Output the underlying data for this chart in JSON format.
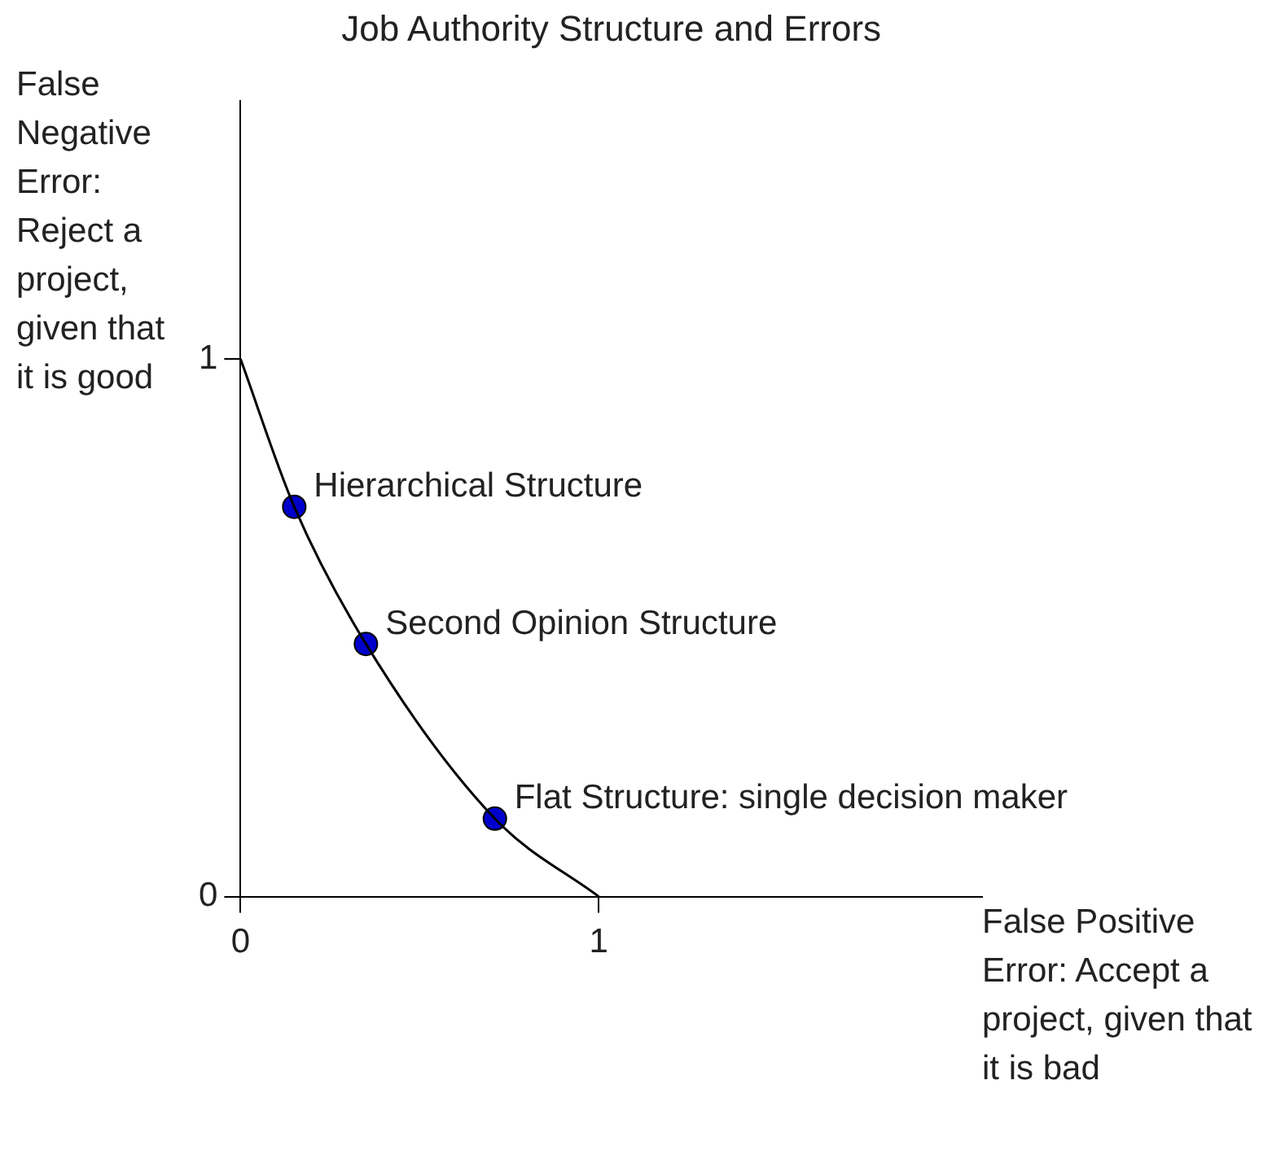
{
  "chart_data": {
    "type": "line",
    "title": "Job Authority Structure and Errors",
    "xlabel": "False Positive Error: Accept a project, given that it is bad",
    "ylabel": "False Negative Error: Reject a project, given that it is good",
    "xlim": [
      0,
      2.07
    ],
    "ylim": [
      0,
      1.48
    ],
    "xticks": [
      0,
      1
    ],
    "yticks": [
      0,
      1
    ],
    "grid": false,
    "legend": false,
    "series": [
      {
        "color": "#000000",
        "marker": "none",
        "x": [
          0,
          0.15,
          0.35,
          0.71,
          1
        ],
        "values": [
          1,
          0.725,
          0.47,
          0.145,
          0
        ]
      },
      {
        "type": "scatter",
        "color": "#0000cc",
        "marker": "circle",
        "x": [
          0.15,
          0.35,
          0.71
        ],
        "values": [
          0.725,
          0.47,
          0.145
        ]
      }
    ],
    "annotations": [
      {
        "text": "Hierarchical Structure",
        "x": 0.15,
        "y": 0.725
      },
      {
        "text": "Second Opinion Structure",
        "x": 0.35,
        "y": 0.47
      },
      {
        "text": "Flat Structure: single decision maker",
        "x": 0.71,
        "y": 0.145
      }
    ]
  }
}
